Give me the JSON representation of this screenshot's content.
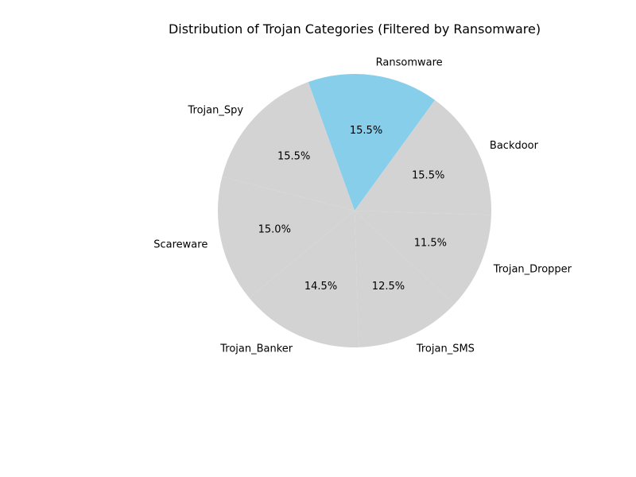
{
  "chart_data": {
    "type": "pie",
    "title": "Distribution of Trojan Categories (Filtered by Ransomware)",
    "start_category": "Ransomware",
    "direction": "counterclockwise",
    "slices": [
      {
        "label": "Ransomware",
        "value": 15.5,
        "pct_label": "15.5%",
        "color": "#87ceeb"
      },
      {
        "label": "Trojan_Spy",
        "value": 15.5,
        "pct_label": "15.5%",
        "color": "#d3d3d3"
      },
      {
        "label": "Scareware",
        "value": 15.0,
        "pct_label": "15.0%",
        "color": "#d3d3d3"
      },
      {
        "label": "Trojan_Banker",
        "value": 14.5,
        "pct_label": "14.5%",
        "color": "#d3d3d3"
      },
      {
        "label": "Trojan_SMS",
        "value": 12.5,
        "pct_label": "12.5%",
        "color": "#d3d3d3"
      },
      {
        "label": "Trojan_Dropper",
        "value": 11.5,
        "pct_label": "11.5%",
        "color": "#d3d3d3"
      },
      {
        "label": "Backdoor",
        "value": 15.5,
        "pct_label": "15.5%",
        "color": "#d3d3d3"
      }
    ],
    "highlight_color": "#87ceeb",
    "other_color": "#d3d3d3"
  }
}
